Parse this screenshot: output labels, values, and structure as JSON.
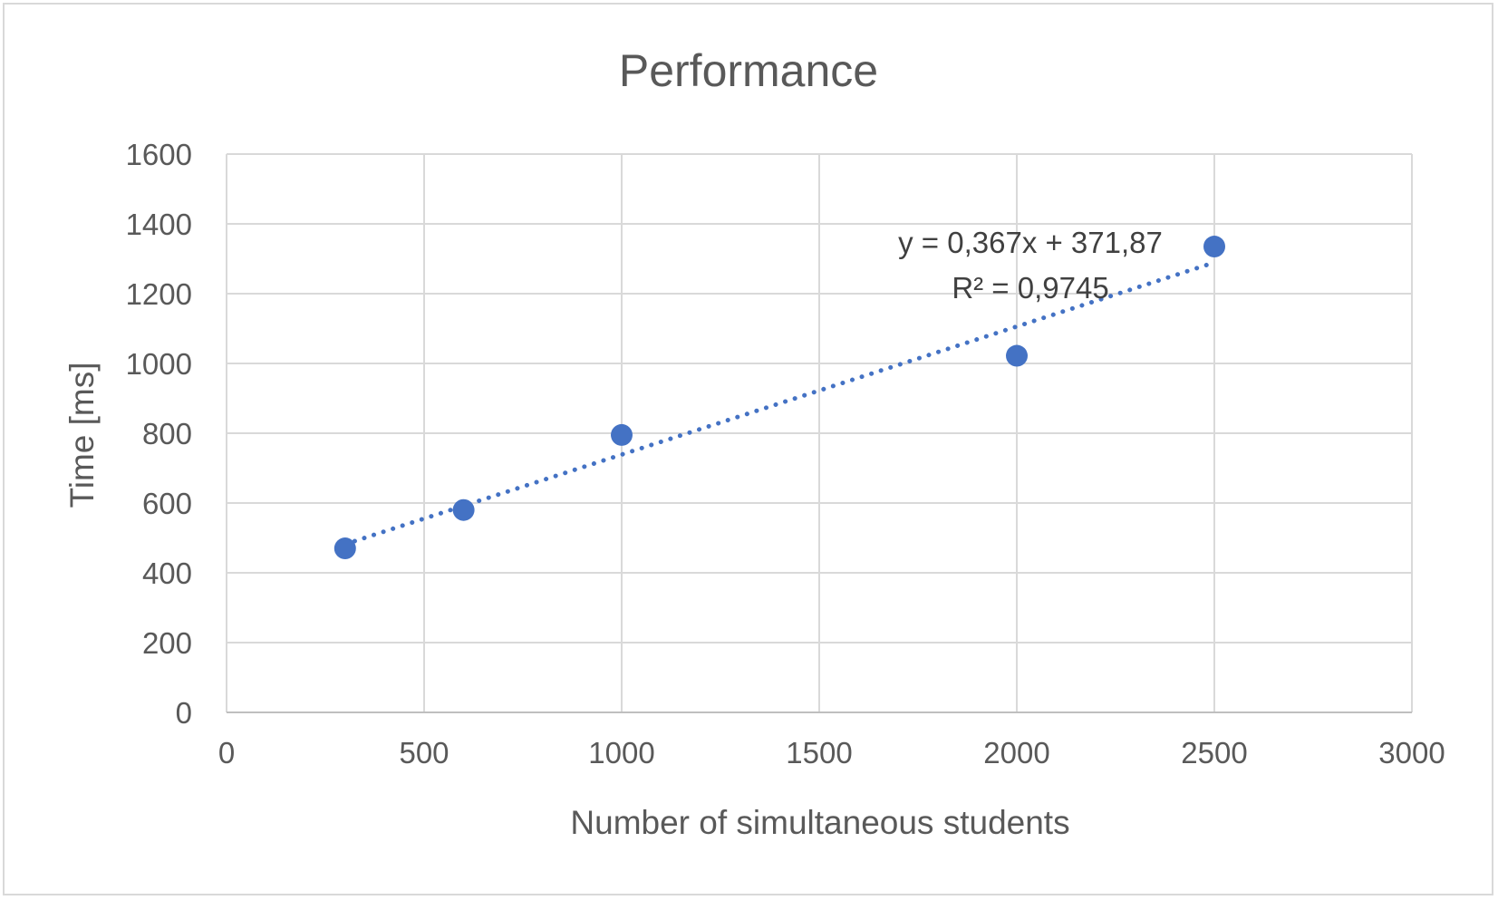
{
  "chart_data": {
    "type": "scatter",
    "title": "Performance",
    "xlabel": "Number of simultaneous students",
    "ylabel": "Time [ms]",
    "xlim": [
      0,
      3000
    ],
    "ylim": [
      0,
      1600
    ],
    "x_ticks": [
      "0",
      "500",
      "1000",
      "1500",
      "2000",
      "2500",
      "3000"
    ],
    "y_ticks": [
      "0",
      "200",
      "400",
      "600",
      "800",
      "1000",
      "1200",
      "1400",
      "1600"
    ],
    "grid": true,
    "legend": "none",
    "series": [
      {
        "x": [
          300,
          600,
          1000,
          2000,
          2500
        ],
        "y": [
          470,
          580,
          795,
          1022,
          1335
        ],
        "color": "#4472C4"
      }
    ],
    "trendline": {
      "type": "linear",
      "slope": 0.367,
      "intercept": 371.87,
      "style": "dotted",
      "color": "#4472C4",
      "equation_label": "y = 0,367x + 371,87",
      "r2_label": "R² = 0,9745"
    }
  }
}
